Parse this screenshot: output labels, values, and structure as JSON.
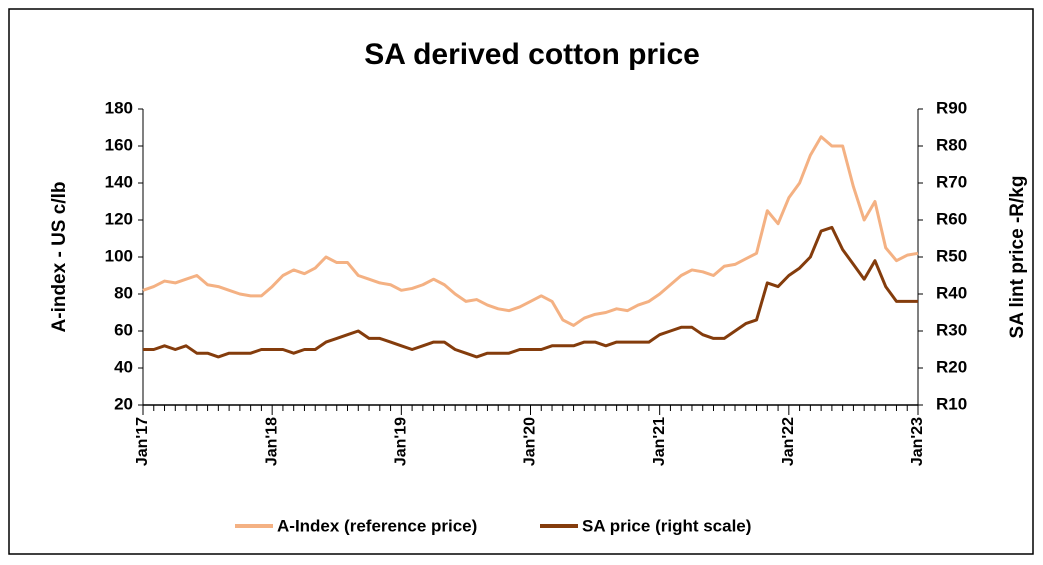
{
  "chart_data": {
    "type": "line",
    "title": "SA derived cotton price",
    "y_label": "A-index - US c/lb",
    "y2_label": "SA lint price -R/kg",
    "categories": [
      "Jan'17",
      null,
      null,
      null,
      null,
      null,
      null,
      null,
      null,
      null,
      null,
      null,
      "Jan'18",
      null,
      null,
      null,
      null,
      null,
      null,
      null,
      null,
      null,
      null,
      null,
      "Jan'19",
      null,
      null,
      null,
      null,
      null,
      null,
      null,
      null,
      null,
      null,
      null,
      "Jan'20",
      null,
      null,
      null,
      null,
      null,
      null,
      null,
      null,
      null,
      null,
      null,
      "Jan'21",
      null,
      null,
      null,
      null,
      null,
      null,
      null,
      null,
      null,
      null,
      null,
      "Jan'22",
      null,
      null,
      null,
      null,
      null,
      null,
      null,
      null,
      null,
      null,
      null,
      "Jan'23"
    ],
    "series": [
      {
        "name": "A-Index (reference price)",
        "color": "#f4b183",
        "values": [
          82,
          84,
          87,
          86,
          88,
          90,
          85,
          84,
          82,
          80,
          79,
          79,
          84,
          90,
          93,
          91,
          94,
          100,
          97,
          97,
          90,
          88,
          86,
          85,
          82,
          83,
          85,
          88,
          85,
          80,
          76,
          77,
          74,
          72,
          71,
          73,
          76,
          79,
          76,
          66,
          63,
          67,
          69,
          70,
          72,
          71,
          74,
          76,
          80,
          85,
          90,
          93,
          92,
          90,
          95,
          96,
          99,
          102,
          125,
          118,
          132,
          140,
          155,
          165,
          160,
          160,
          138,
          120,
          130,
          105,
          98,
          101,
          102
        ]
      },
      {
        "name": "SA price (right scale)",
        "color": "#843c0c",
        "axis": "y2",
        "values": [
          25,
          25,
          26,
          25,
          26,
          24,
          24,
          23,
          24,
          24,
          24,
          25,
          25,
          25,
          24,
          25,
          25,
          27,
          28,
          29,
          30,
          28,
          28,
          27,
          26,
          25,
          26,
          27,
          27,
          25,
          24,
          23,
          24,
          24,
          24,
          25,
          25,
          25,
          26,
          26,
          26,
          27,
          27,
          26,
          27,
          27,
          27,
          27,
          29,
          30,
          31,
          31,
          29,
          28,
          28,
          30,
          32,
          33,
          43,
          42,
          45,
          47,
          50,
          57,
          58,
          52,
          48,
          44,
          49,
          42,
          38,
          38,
          38
        ]
      }
    ],
    "ylim": [
      20,
      180
    ],
    "yticks": [
      20,
      40,
      60,
      80,
      100,
      120,
      140,
      160,
      180
    ],
    "y2lim": [
      10,
      90
    ],
    "y2ticks": [
      {
        "value": 10,
        "label": "R10"
      },
      {
        "value": 20,
        "label": "R20"
      },
      {
        "value": 30,
        "label": "R30"
      },
      {
        "value": 40,
        "label": "R40"
      },
      {
        "value": 50,
        "label": "R50"
      },
      {
        "value": 60,
        "label": "R60"
      },
      {
        "value": 70,
        "label": "R70"
      },
      {
        "value": 80,
        "label": "R80"
      },
      {
        "value": 90,
        "label": "R90"
      }
    ],
    "legend": "bottom"
  }
}
